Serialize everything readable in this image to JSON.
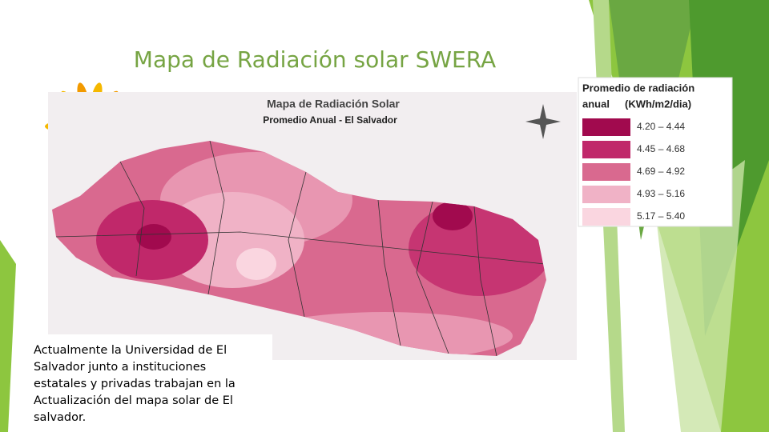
{
  "title": "Mapa de Radiación solar SWERA",
  "map": {
    "title": "Mapa de Radiación Solar",
    "subtitle": "Promedio Anual - El Salvador"
  },
  "legend": {
    "title": [
      "Promedio de radiación",
      "anual",
      "(KWh/m2/dia)"
    ],
    "items": [
      {
        "label": "4.20 – 4.44",
        "color": "#a10a4e"
      },
      {
        "label": "4.45 – 4.68",
        "color": "#c0286a"
      },
      {
        "label": "4.69 – 4.92",
        "color": "#d9698f"
      },
      {
        "label": "4.93 – 5.16",
        "color": "#f0b2c6"
      },
      {
        "label": "5.17 – 5.40",
        "color": "#fad6e0"
      }
    ]
  },
  "body": {
    "lines": [
      "Actualmente la Universidad de El",
      "Salvador junto a instituciones",
      "estatales y privadas trabajan en la",
      "Actualización del mapa solar de El",
      "salvador."
    ]
  }
}
